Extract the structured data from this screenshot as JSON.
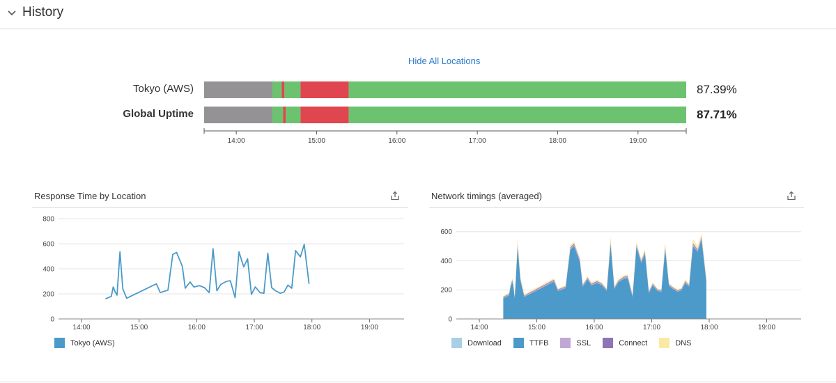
{
  "header": {
    "title": "History",
    "toggle_icon": "chevron-down-icon"
  },
  "uptime": {
    "hide_label": "Hide All Locations",
    "axis_ticks": [
      "14:00",
      "15:00",
      "16:00",
      "17:00",
      "18:00",
      "19:00"
    ],
    "axis_range": [
      "13:36",
      "19:36"
    ],
    "status_colors": {
      "unknown": "#959295",
      "up": "#6cc26f",
      "down": "#e0464f"
    },
    "rows": [
      {
        "label": "Tokyo (AWS)",
        "percent": "87.39%",
        "segments": [
          {
            "start": "13:36",
            "end": "14:27",
            "status": "unknown"
          },
          {
            "start": "14:27",
            "end": "14:34",
            "status": "up"
          },
          {
            "start": "14:34",
            "end": "14:36",
            "status": "down"
          },
          {
            "start": "14:36",
            "end": "14:48",
            "status": "up"
          },
          {
            "start": "14:48",
            "end": "15:24",
            "status": "down"
          },
          {
            "start": "15:24",
            "end": "19:36",
            "status": "up"
          }
        ]
      },
      {
        "label": "Global Uptime",
        "percent": "87.71%",
        "segments": [
          {
            "start": "13:36",
            "end": "14:27",
            "status": "unknown"
          },
          {
            "start": "14:27",
            "end": "14:35",
            "status": "up"
          },
          {
            "start": "14:35",
            "end": "14:37",
            "status": "down"
          },
          {
            "start": "14:37",
            "end": "14:48",
            "status": "up"
          },
          {
            "start": "14:48",
            "end": "15:24",
            "status": "down"
          },
          {
            "start": "15:24",
            "end": "19:36",
            "status": "up"
          }
        ]
      }
    ]
  },
  "response_panel": {
    "title": "Response Time by Location",
    "export_icon": "share-icon"
  },
  "network_panel": {
    "title": "Network timings (averaged)",
    "export_icon": "share-icon"
  },
  "chart_data": [
    {
      "type": "line",
      "title": "Response Time by Location",
      "x_ticks": [
        "14:00",
        "15:00",
        "16:00",
        "17:00",
        "18:00",
        "19:00"
      ],
      "xlim": [
        "13:36",
        "19:36"
      ],
      "y_ticks": [
        0,
        200,
        400,
        600,
        800
      ],
      "ylim": [
        0,
        800
      ],
      "grid": true,
      "legend_position": "bottom-left",
      "series": [
        {
          "name": "Tokyo (AWS)",
          "color": "#4b9ac9",
          "points": [
            [
              "14:25",
              160
            ],
            [
              "14:31",
              180
            ],
            [
              "14:33",
              255
            ],
            [
              "14:35",
              215
            ],
            [
              "14:37",
              190
            ],
            [
              "14:40",
              535
            ],
            [
              "14:43",
              240
            ],
            [
              "14:47",
              165
            ],
            [
              "15:18",
              280
            ],
            [
              "15:22",
              210
            ],
            [
              "15:30",
              230
            ],
            [
              "15:35",
              515
            ],
            [
              "15:39",
              530
            ],
            [
              "15:45",
              420
            ],
            [
              "15:48",
              245
            ],
            [
              "15:53",
              295
            ],
            [
              "15:57",
              255
            ],
            [
              "16:03",
              265
            ],
            [
              "16:08",
              250
            ],
            [
              "16:13",
              210
            ],
            [
              "16:17",
              560
            ],
            [
              "16:21",
              225
            ],
            [
              "16:25",
              275
            ],
            [
              "16:31",
              300
            ],
            [
              "16:35",
              305
            ],
            [
              "16:40",
              170
            ],
            [
              "16:44",
              535
            ],
            [
              "16:49",
              415
            ],
            [
              "16:53",
              480
            ],
            [
              "16:57",
              195
            ],
            [
              "17:01",
              255
            ],
            [
              "17:06",
              210
            ],
            [
              "17:10",
              205
            ],
            [
              "17:14",
              525
            ],
            [
              "17:18",
              250
            ],
            [
              "17:22",
              225
            ],
            [
              "17:27",
              205
            ],
            [
              "17:31",
              215
            ],
            [
              "17:35",
              270
            ],
            [
              "17:39",
              245
            ],
            [
              "17:43",
              545
            ],
            [
              "17:48",
              495
            ],
            [
              "17:52",
              595
            ],
            [
              "17:57",
              280
            ]
          ]
        }
      ]
    },
    {
      "type": "area",
      "title": "Network timings (averaged)",
      "x_ticks": [
        "14:00",
        "15:00",
        "16:00",
        "17:00",
        "18:00",
        "19:00"
      ],
      "xlim": [
        "13:36",
        "19:36"
      ],
      "y_ticks": [
        0,
        200,
        400,
        600
      ],
      "ylim": [
        0,
        680
      ],
      "grid": true,
      "stacked": true,
      "legend_position": "bottom",
      "x": [
        "14:25",
        "14:31",
        "14:33",
        "14:35",
        "14:37",
        "14:40",
        "14:43",
        "14:47",
        "15:18",
        "15:22",
        "15:30",
        "15:35",
        "15:39",
        "15:45",
        "15:48",
        "15:53",
        "15:57",
        "16:03",
        "16:08",
        "16:13",
        "16:17",
        "16:21",
        "16:25",
        "16:31",
        "16:35",
        "16:40",
        "16:44",
        "16:49",
        "16:53",
        "16:57",
        "17:01",
        "17:06",
        "17:10",
        "17:14",
        "17:18",
        "17:22",
        "17:27",
        "17:31",
        "17:35",
        "17:39",
        "17:43",
        "17:48",
        "17:52",
        "17:57"
      ],
      "series": [
        {
          "name": "Download",
          "color": "#a9cfe4",
          "values": [
            2,
            2,
            2,
            2,
            2,
            2,
            2,
            2,
            2,
            2,
            2,
            2,
            2,
            2,
            2,
            2,
            2,
            2,
            2,
            2,
            2,
            2,
            2,
            2,
            2,
            2,
            2,
            2,
            2,
            2,
            2,
            2,
            2,
            2,
            2,
            2,
            2,
            2,
            2,
            2,
            2,
            2,
            2,
            2
          ]
        },
        {
          "name": "TTFB",
          "color": "#4b9ac9",
          "values": [
            140,
            160,
            230,
            250,
            140,
            495,
            260,
            150,
            255,
            190,
            210,
            475,
            500,
            390,
            220,
            270,
            230,
            245,
            230,
            190,
            515,
            205,
            250,
            275,
            280,
            150,
            495,
            385,
            445,
            175,
            230,
            190,
            185,
            480,
            225,
            205,
            185,
            195,
            245,
            220,
            500,
            460,
            545,
            255
          ]
        },
        {
          "name": "SSL",
          "color": "#c0a8d6",
          "values": [
            6,
            6,
            8,
            10,
            6,
            15,
            8,
            6,
            8,
            6,
            7,
            10,
            10,
            10,
            7,
            8,
            7,
            8,
            7,
            6,
            12,
            6,
            7,
            8,
            8,
            6,
            10,
            9,
            10,
            6,
            7,
            6,
            6,
            12,
            7,
            6,
            6,
            6,
            8,
            7,
            12,
            10,
            12,
            8
          ]
        },
        {
          "name": "Connect",
          "color": "#8b75b5",
          "values": [
            4,
            4,
            5,
            6,
            4,
            8,
            5,
            4,
            5,
            4,
            4,
            6,
            6,
            6,
            4,
            5,
            4,
            5,
            4,
            4,
            7,
            4,
            4,
            5,
            5,
            4,
            6,
            5,
            6,
            4,
            4,
            4,
            4,
            7,
            4,
            4,
            4,
            4,
            5,
            4,
            7,
            6,
            7,
            5
          ]
        },
        {
          "name": "DNS",
          "color": "#fae9a3",
          "values": [
            8,
            8,
            10,
            12,
            8,
            30,
            12,
            8,
            10,
            8,
            8,
            15,
            14,
            12,
            8,
            10,
            8,
            10,
            8,
            8,
            30,
            8,
            10,
            10,
            10,
            8,
            20,
            12,
            15,
            8,
            10,
            8,
            8,
            30,
            10,
            8,
            8,
            8,
            12,
            10,
            30,
            20,
            25,
            12
          ]
        }
      ]
    }
  ]
}
